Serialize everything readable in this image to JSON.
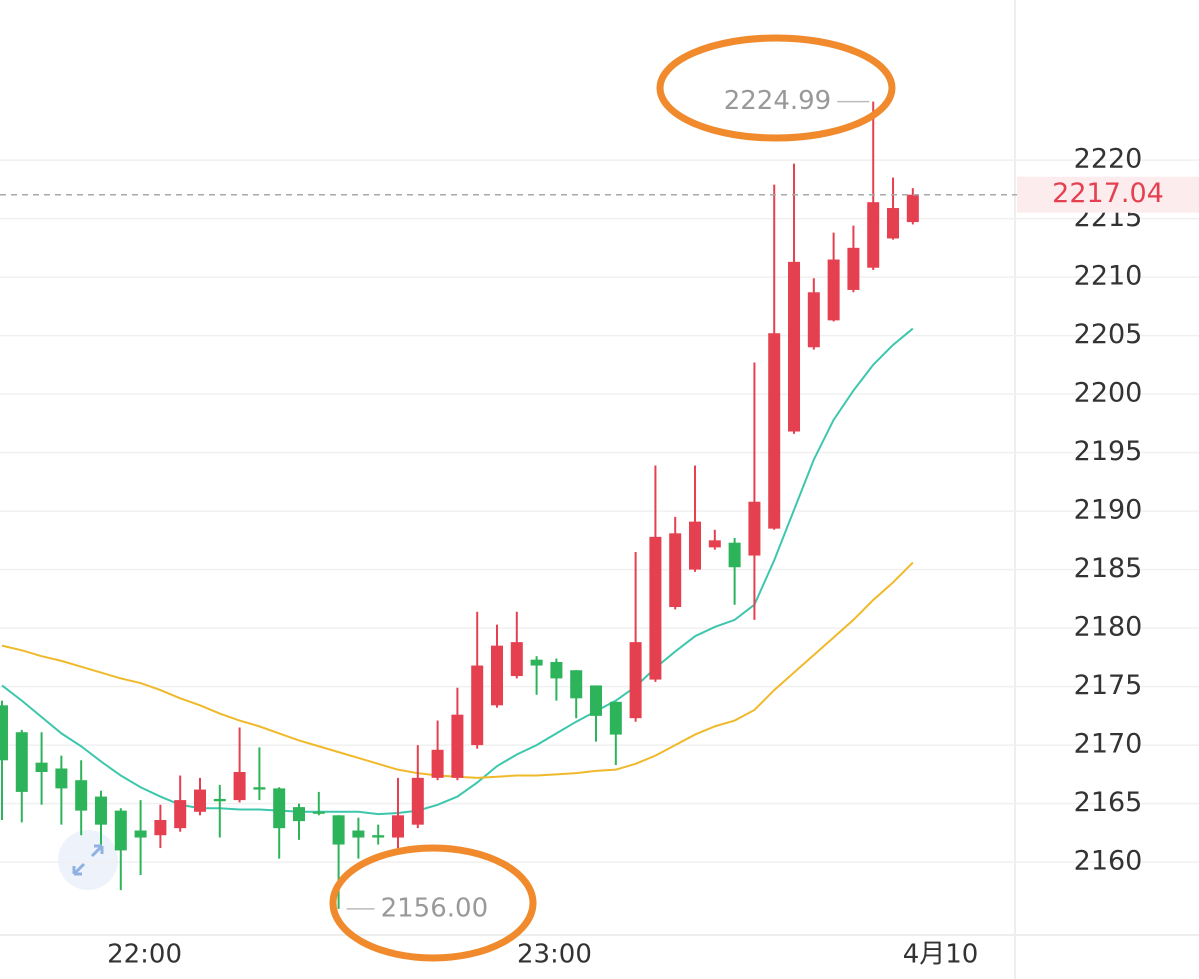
{
  "chart_data": {
    "type": "candlestick",
    "open": [
      2173.4,
      2171.1,
      2168.5,
      2168.0,
      2167.0,
      2165.6,
      2164.4,
      2162.7,
      2162.3,
      2162.9,
      2164.3,
      2165.4,
      2165.3,
      2166.4,
      2166.3,
      2164.7,
      2164.3,
      2164.0,
      2162.7,
      2162.3,
      2162.1,
      2163.2,
      2167.2,
      2167.2,
      2170.0,
      2173.4,
      2175.9,
      2177.3,
      2177.1,
      2176.4,
      2175.1,
      2173.7,
      2172.3,
      2175.6,
      2181.8,
      2185.0,
      2186.9,
      2187.3,
      2186.2,
      2188.5,
      2196.8,
      2204.0,
      2206.3,
      2208.9,
      2210.8,
      2213.3,
      2214.7
    ],
    "high": [
      2173.8,
      2171.3,
      2171.1,
      2169.1,
      2168.7,
      2166.1,
      2164.6,
      2165.3,
      2164.9,
      2167.4,
      2167.2,
      2166.6,
      2171.5,
      2169.8,
      2166.4,
      2165.0,
      2166.0,
      2164.0,
      2163.8,
      2163.2,
      2167.2,
      2170.0,
      2172.1,
      2174.9,
      2181.4,
      2180.3,
      2181.4,
      2177.6,
      2177.4,
      2176.4,
      2175.1,
      2173.7,
      2186.5,
      2193.9,
      2189.5,
      2193.9,
      2188.4,
      2187.7,
      2202.7,
      2217.9,
      2219.7,
      2209.9,
      2213.8,
      2214.4,
      2224.99,
      2218.5,
      2217.6
    ],
    "low": [
      2163.6,
      2163.4,
      2164.9,
      2163.2,
      2162.3,
      2161.5,
      2157.6,
      2158.9,
      2161.2,
      2162.6,
      2164.0,
      2162.1,
      2165.1,
      2165.3,
      2160.3,
      2161.9,
      2164.0,
      2156.0,
      2160.3,
      2161.5,
      2161.2,
      2162.9,
      2167.0,
      2167.0,
      2169.7,
      2173.2,
      2175.7,
      2174.3,
      2173.8,
      2172.3,
      2170.3,
      2168.3,
      2172.0,
      2175.4,
      2181.6,
      2184.8,
      2186.7,
      2182.0,
      2180.7,
      2188.4,
      2196.6,
      2203.8,
      2206.2,
      2208.7,
      2210.6,
      2213.2,
      2214.5
    ],
    "close": [
      2168.7,
      2166.0,
      2167.7,
      2166.3,
      2164.4,
      2163.2,
      2161.0,
      2162.1,
      2163.6,
      2165.3,
      2166.2,
      2165.2,
      2167.7,
      2166.2,
      2162.9,
      2163.5,
      2164.2,
      2161.5,
      2162.1,
      2162.1,
      2164.0,
      2167.2,
      2169.6,
      2172.6,
      2176.8,
      2178.5,
      2178.8,
      2176.8,
      2175.7,
      2174.0,
      2172.5,
      2170.9,
      2178.8,
      2187.8,
      2188.1,
      2189.1,
      2187.5,
      2185.2,
      2190.8,
      2205.2,
      2211.3,
      2208.7,
      2211.5,
      2212.5,
      2216.4,
      2215.9,
      2217.04
    ],
    "up_color": "#e5404f",
    "down_color": "#2db35a",
    "series": [
      {
        "color": "#3cc7ad",
        "values": [
          2175.1,
          2173.8,
          2172.4,
          2171.0,
          2169.9,
          2168.6,
          2167.4,
          2166.4,
          2165.6,
          2164.9,
          2164.6,
          2164.6,
          2164.5,
          2164.5,
          2164.4,
          2164.3,
          2164.3,
          2164.3,
          2164.3,
          2164.1,
          2164.2,
          2164.4,
          2164.9,
          2165.6,
          2166.8,
          2168.2,
          2169.2,
          2170.0,
          2171.0,
          2172.0,
          2172.9,
          2173.8,
          2175.0,
          2176.6,
          2178.0,
          2179.3,
          2180.1,
          2180.7,
          2182.0,
          2185.8,
          2190.1,
          2194.4,
          2197.8,
          2200.3,
          2202.5,
          2204.2,
          2205.6
        ]
      },
      {
        "color": "#f0b92a",
        "values": [
          2178.5,
          2178.1,
          2177.6,
          2177.2,
          2176.7,
          2176.2,
          2175.7,
          2175.3,
          2174.7,
          2174.0,
          2173.4,
          2172.7,
          2172.1,
          2171.6,
          2171.0,
          2170.4,
          2169.9,
          2169.4,
          2168.9,
          2168.4,
          2167.9,
          2167.6,
          2167.4,
          2167.3,
          2167.2,
          2167.3,
          2167.4,
          2167.4,
          2167.5,
          2167.6,
          2167.8,
          2167.9,
          2168.4,
          2169.1,
          2170.0,
          2170.9,
          2171.6,
          2172.1,
          2173.0,
          2174.7,
          2176.2,
          2177.7,
          2179.2,
          2180.7,
          2182.4,
          2183.9,
          2185.6
        ]
      }
    ],
    "extreme_labels": {
      "high": "2224.99",
      "low": "2156.00"
    },
    "ylim": [
      2153.77,
      2233.68
    ],
    "yticks": [
      2160,
      2165,
      2170,
      2175,
      2180,
      2185,
      2190,
      2195,
      2200,
      2205,
      2210,
      2215,
      2220
    ],
    "xlim": [
      -0.1,
      51.16
    ],
    "xticks": [
      {
        "value": 7.2,
        "label": "22:00"
      },
      {
        "value": 27.9,
        "label": "23:00"
      },
      {
        "value": 47.4,
        "label": "4月10"
      }
    ],
    "grid": true
  }
}
